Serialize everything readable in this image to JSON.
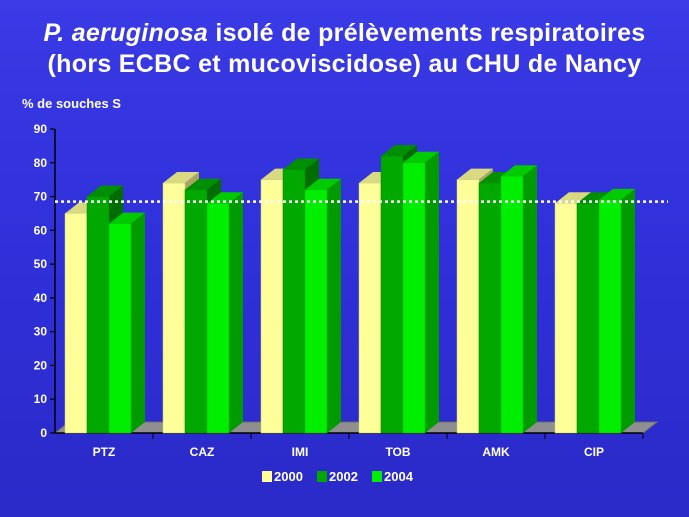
{
  "title": {
    "line1_italic": "P. aeruginosa",
    "line1_rest": " isolé de prélèvements respiratoires",
    "line2": "(hors ECBC et mucoviscidose) au CHU de Nancy"
  },
  "chart_data": {
    "type": "bar",
    "ylabel": "% de souches S",
    "ylim": [
      0,
      90
    ],
    "yticks": [
      0,
      10,
      20,
      30,
      40,
      50,
      60,
      70,
      80,
      90
    ],
    "categories": [
      "PTZ",
      "CAZ",
      "IMI",
      "TOB",
      "AMK",
      "CIP"
    ],
    "series": [
      {
        "name": "2000",
        "color": "#ffff99",
        "values": [
          65,
          74,
          75,
          74,
          75,
          68
        ]
      },
      {
        "name": "2002",
        "color": "#00a800",
        "values": [
          70,
          72,
          78,
          82,
          74,
          68
        ]
      },
      {
        "name": "2004",
        "color": "#00ee00",
        "values": [
          62,
          68,
          72,
          80,
          76,
          69
        ]
      }
    ],
    "reference_line": 68.5,
    "legend_position": "bottom",
    "style": "3d-bars"
  }
}
